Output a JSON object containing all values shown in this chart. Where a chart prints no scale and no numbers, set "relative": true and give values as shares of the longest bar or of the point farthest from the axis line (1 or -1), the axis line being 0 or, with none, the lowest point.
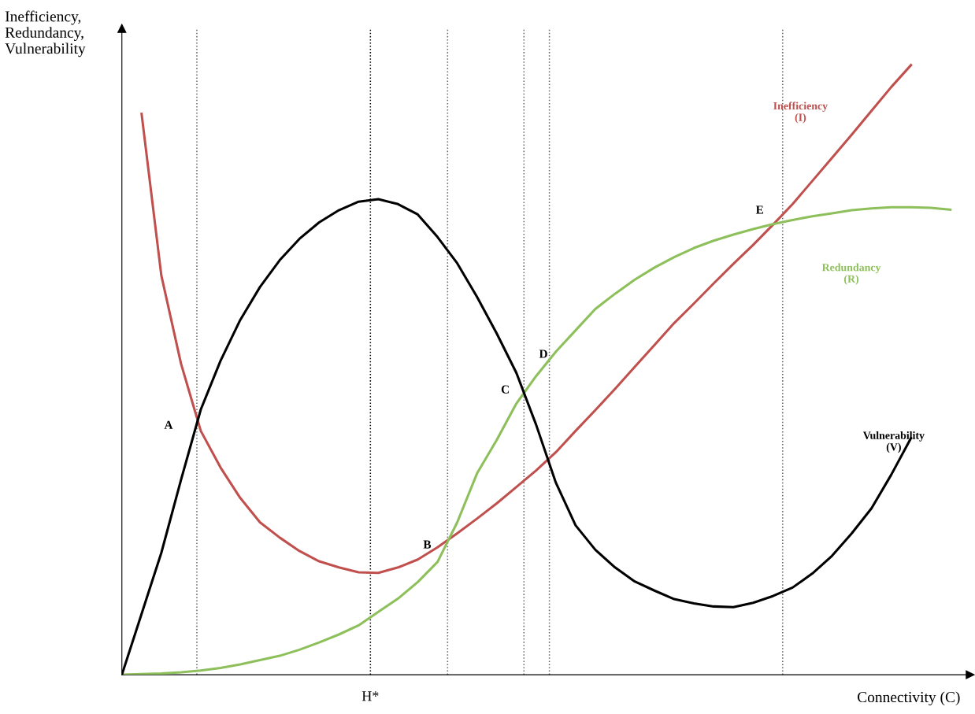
{
  "chart_data": {
    "type": "line",
    "relative": true,
    "ylabel": "Inefficiency,\nRedundancy,\nVulnerability",
    "xlabel": "Connectivity (C)",
    "marker": "none",
    "line_style": "solid",
    "categories": [
      null,
      null,
      null,
      null,
      null,
      null,
      null,
      null,
      null,
      null,
      null,
      null,
      null,
      null,
      null,
      null,
      null,
      null,
      null,
      null,
      null,
      null,
      null,
      null,
      null,
      null,
      null,
      null,
      null,
      null,
      null,
      null,
      null,
      null,
      null,
      null,
      null,
      null,
      null,
      null,
      null,
      null,
      null
    ],
    "series": [
      {
        "name": "Inefficiency\n(I)",
        "color": "#c0504d",
        "values": [
          null,
          0.92,
          0.655,
          0.51,
          0.4,
          0.34,
          0.29,
          0.25,
          0.225,
          0.203,
          0.186,
          0.176,
          0.168,
          0.167,
          0.176,
          0.189,
          0.209,
          0.232,
          0.256,
          0.281,
          0.308,
          0.335,
          0.365,
          0.4,
          0.434,
          0.469,
          0.505,
          0.541,
          0.577,
          0.609,
          0.642,
          0.674,
          0.705,
          0.738,
          0.772,
          0.81,
          0.848,
          0.886,
          0.925,
          0.964,
          1.0,
          null,
          null
        ]
      },
      {
        "name": "Redundancy\n(R)",
        "color": "#8dbf5a",
        "values": [
          0,
          0.001,
          0.002,
          0.004,
          0.007,
          0.011,
          0.017,
          0.024,
          0.031,
          0.041,
          0.053,
          0.066,
          0.081,
          0.103,
          0.125,
          0.152,
          0.185,
          0.25,
          0.33,
          0.385,
          0.445,
          0.49,
          0.53,
          0.565,
          0.6,
          0.625,
          0.648,
          0.668,
          0.685,
          0.7,
          0.712,
          0.722,
          0.731,
          0.739,
          0.746,
          0.752,
          0.757,
          0.762,
          0.765,
          0.767,
          0.767,
          0.766,
          0.763
        ]
      },
      {
        "name": "Vulnerability\n(V)",
        "color": "#000000",
        "values": [
          0,
          0.1,
          0.2,
          0.32,
          0.435,
          0.515,
          0.582,
          0.636,
          0.68,
          0.715,
          0.742,
          0.762,
          0.776,
          0.78,
          0.772,
          0.755,
          0.718,
          0.675,
          0.62,
          0.56,
          0.495,
          0.41,
          0.315,
          0.245,
          0.205,
          0.176,
          0.153,
          0.138,
          0.124,
          0.117,
          0.112,
          0.111,
          0.118,
          0.129,
          0.143,
          0.166,
          0.195,
          0.232,
          0.273,
          0.328,
          0.388,
          null,
          null
        ]
      }
    ],
    "annotations": [
      "H*",
      "A",
      "B",
      "C",
      "D",
      "E"
    ]
  }
}
